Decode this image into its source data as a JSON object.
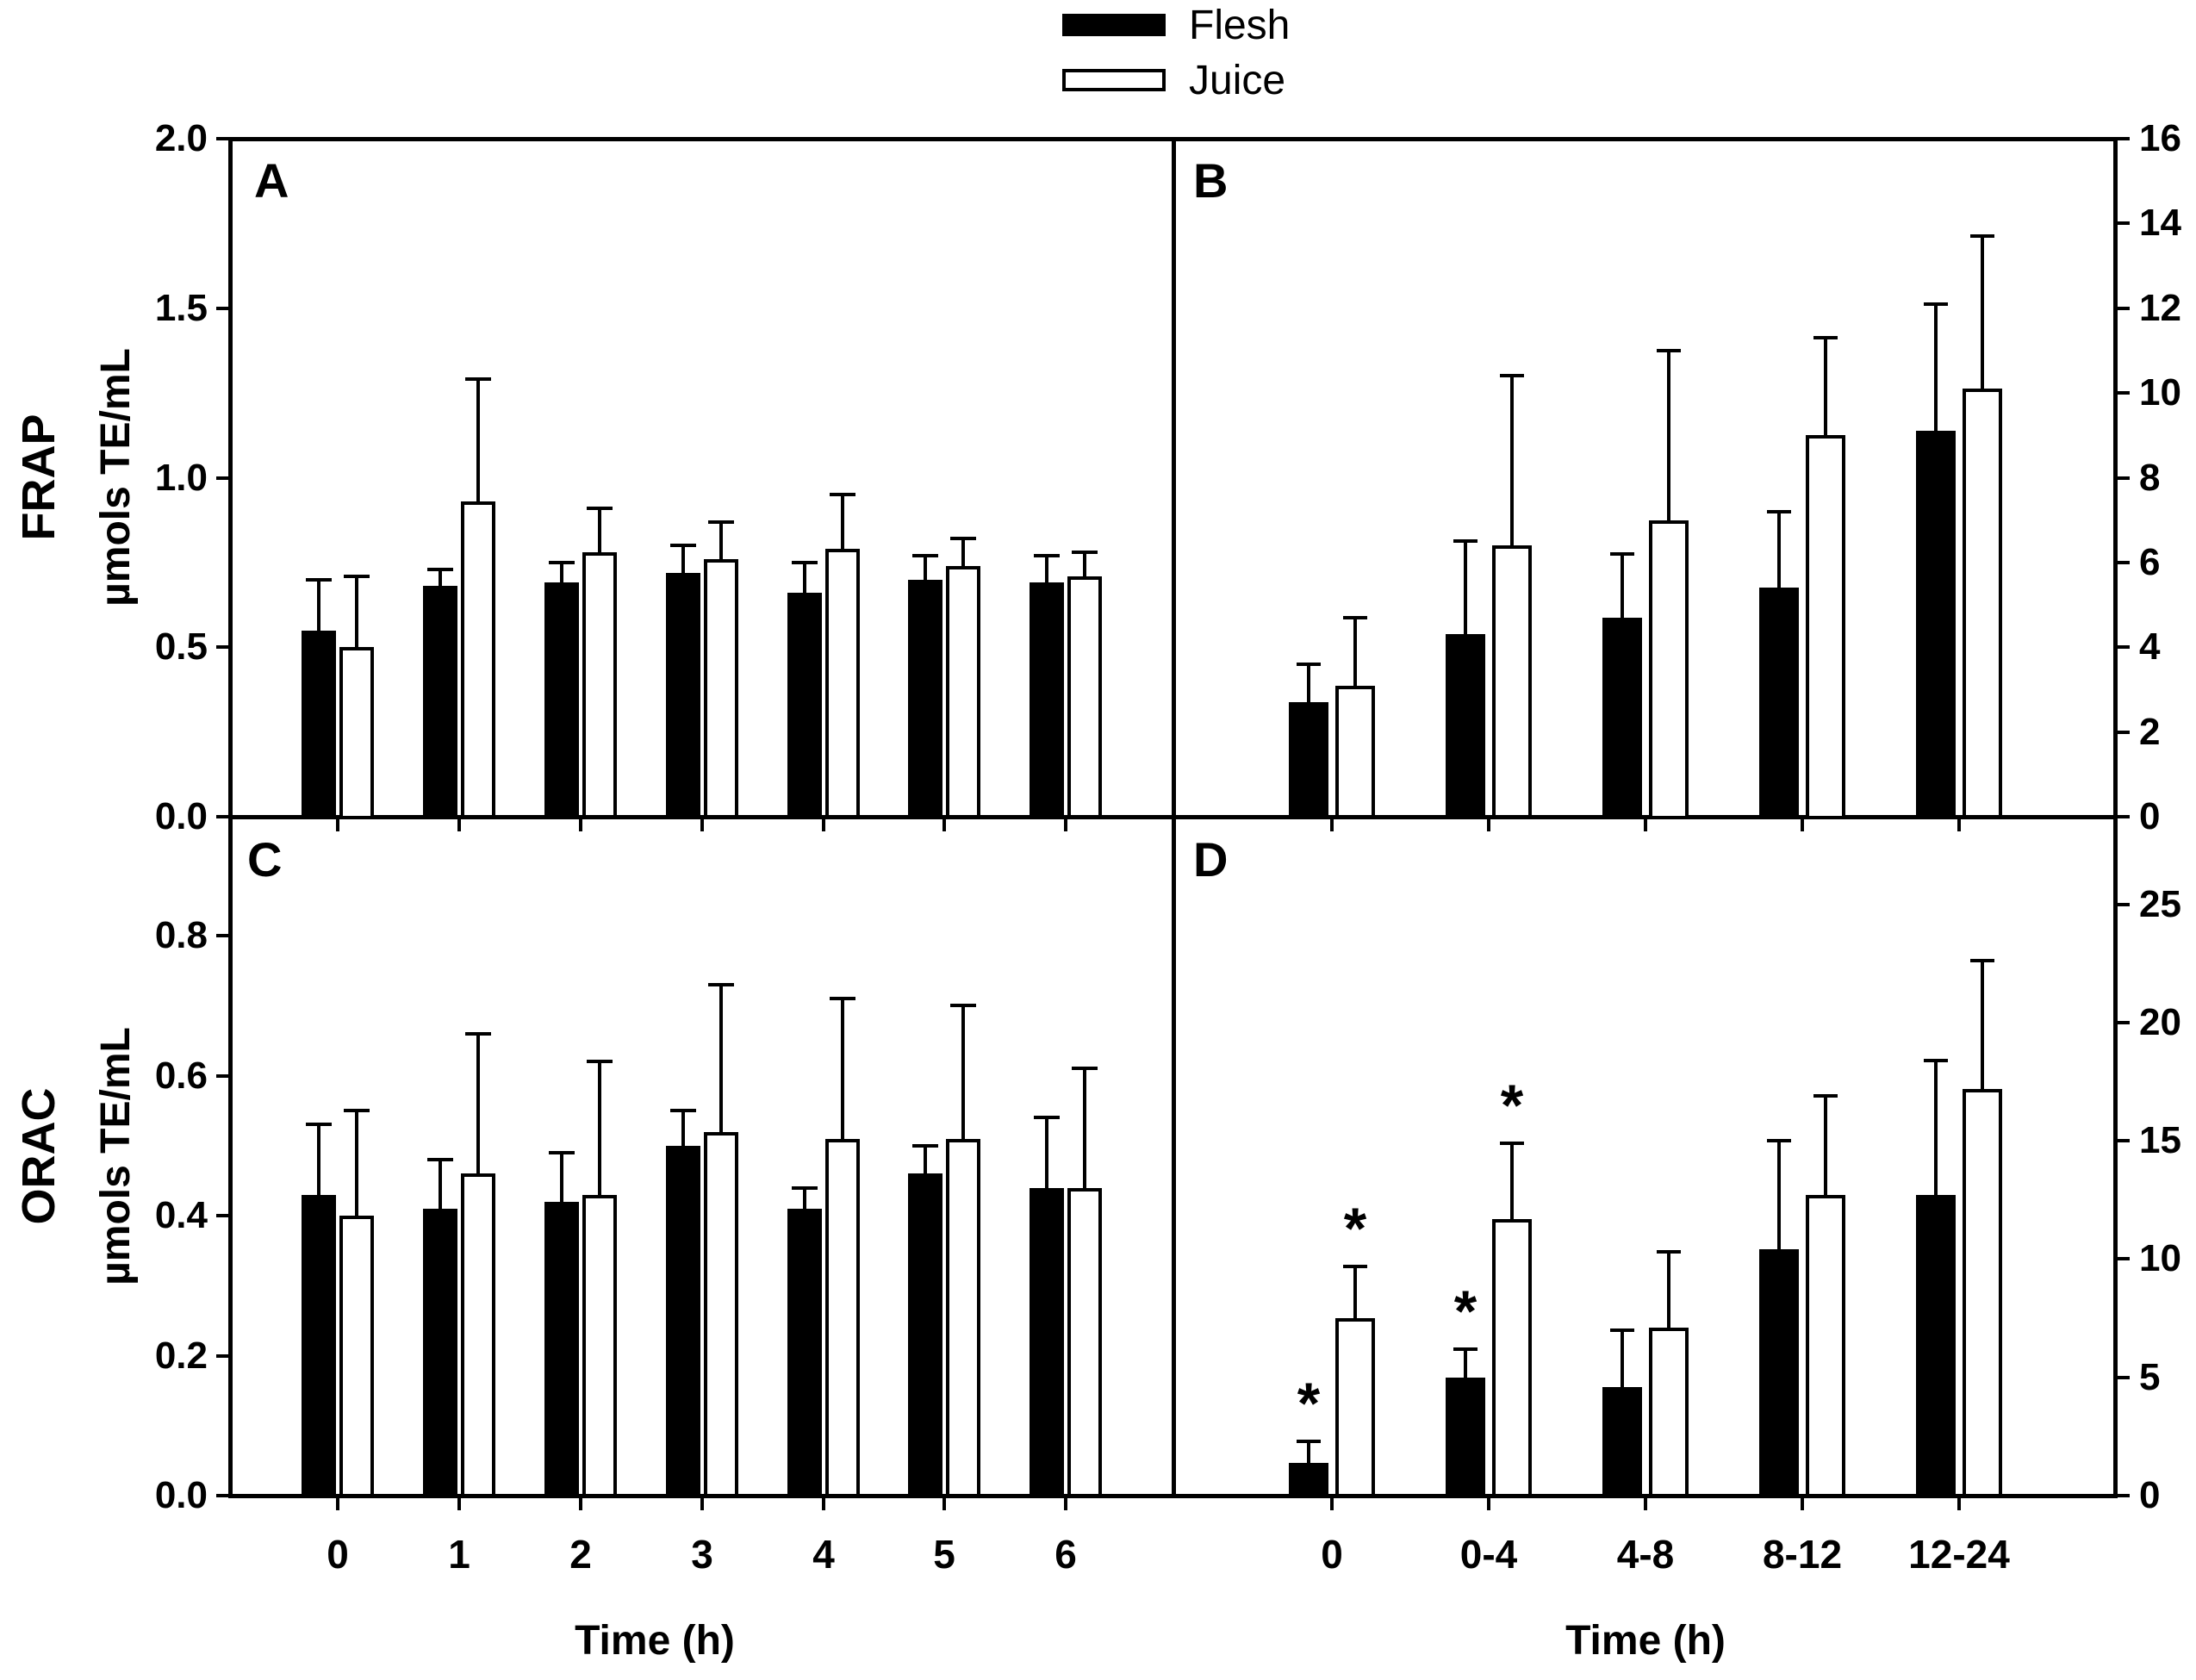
{
  "figure": {
    "colors": {
      "foreground": "#000000",
      "background": "#ffffff"
    },
    "legend": {
      "items": [
        {
          "label": "Flesh",
          "fill": "#000000"
        },
        {
          "label": "Juice",
          "fill": "#ffffff"
        }
      ]
    },
    "row_labels": [
      {
        "title": "FRAP",
        "units": "µmols TE/mL"
      },
      {
        "title": "ORAC",
        "units": "µmols TE/mL"
      }
    ],
    "x_axis_title": "Time (h)"
  },
  "chart_data": [
    {
      "panel": "A",
      "type": "bar",
      "assay": "FRAP",
      "categories": [
        "0",
        "1",
        "2",
        "3",
        "4",
        "5",
        "6"
      ],
      "xlabel": "Time (h)",
      "ylabel": "FRAP µmols TE/mL",
      "y_axis": {
        "side": "left",
        "range": [
          0,
          2.0
        ],
        "tick_values": [
          0.0,
          0.5,
          1.0,
          1.5,
          2.0
        ],
        "tick_labels": [
          "0.0",
          "0.5",
          "1.0",
          "1.5",
          "2.0"
        ]
      },
      "show_category_labels": false,
      "series": [
        {
          "name": "Flesh",
          "fill": "#000000",
          "values": [
            0.55,
            0.68,
            0.69,
            0.72,
            0.66,
            0.7,
            0.69
          ],
          "errors": [
            0.15,
            0.05,
            0.06,
            0.08,
            0.09,
            0.07,
            0.08
          ],
          "asterisks": []
        },
        {
          "name": "Juice",
          "fill": "#ffffff",
          "values": [
            0.5,
            0.93,
            0.78,
            0.76,
            0.79,
            0.74,
            0.71
          ],
          "errors": [
            0.21,
            0.36,
            0.13,
            0.11,
            0.16,
            0.08,
            0.07
          ],
          "asterisks": []
        }
      ]
    },
    {
      "panel": "B",
      "type": "bar",
      "assay": "FRAP",
      "categories": [
        "0",
        "0-4",
        "4-8",
        "8-12",
        "12-24"
      ],
      "xlabel": "Time (h)",
      "ylabel": "",
      "y_axis": {
        "side": "right",
        "range": [
          0,
          16
        ],
        "tick_values": [
          0,
          2,
          4,
          6,
          8,
          10,
          12,
          14,
          16
        ],
        "tick_labels": [
          "0",
          "2",
          "4",
          "6",
          "8",
          "10",
          "12",
          "14",
          "16"
        ]
      },
      "show_category_labels": false,
      "series": [
        {
          "name": "Flesh",
          "fill": "#000000",
          "values": [
            2.7,
            4.3,
            4.7,
            5.4,
            9.1
          ],
          "errors": [
            0.9,
            2.2,
            1.5,
            1.8,
            3.0
          ],
          "asterisks": []
        },
        {
          "name": "Juice",
          "fill": "#ffffff",
          "values": [
            3.1,
            6.4,
            7.0,
            9.0,
            10.1
          ],
          "errors": [
            1.6,
            4.0,
            4.0,
            2.3,
            3.6
          ],
          "asterisks": []
        }
      ]
    },
    {
      "panel": "C",
      "type": "bar",
      "assay": "ORAC",
      "categories": [
        "0",
        "1",
        "2",
        "3",
        "4",
        "5",
        "6"
      ],
      "xlabel": "Time (h)",
      "ylabel": "ORAC µmols TE/mL",
      "y_axis": {
        "side": "left",
        "range": [
          0,
          0.97
        ],
        "tick_values": [
          0.0,
          0.2,
          0.4,
          0.6,
          0.8
        ],
        "tick_labels": [
          "0.0",
          "0.2",
          "0.4",
          "0.6",
          "0.8"
        ]
      },
      "show_category_labels": true,
      "series": [
        {
          "name": "Flesh",
          "fill": "#000000",
          "values": [
            0.43,
            0.41,
            0.42,
            0.5,
            0.41,
            0.46,
            0.44
          ],
          "errors": [
            0.1,
            0.07,
            0.07,
            0.05,
            0.03,
            0.04,
            0.1
          ],
          "asterisks": []
        },
        {
          "name": "Juice",
          "fill": "#ffffff",
          "values": [
            0.4,
            0.46,
            0.43,
            0.52,
            0.51,
            0.51,
            0.44
          ],
          "errors": [
            0.15,
            0.2,
            0.19,
            0.21,
            0.2,
            0.19,
            0.17
          ],
          "asterisks": []
        }
      ]
    },
    {
      "panel": "D",
      "type": "bar",
      "assay": "ORAC",
      "categories": [
        "0",
        "0-4",
        "4-8",
        "8-12",
        "12-24"
      ],
      "xlabel": "Time (h)",
      "ylabel": "",
      "y_axis": {
        "side": "right",
        "range": [
          0,
          28.7
        ],
        "tick_values": [
          0,
          5,
          10,
          15,
          20,
          25
        ],
        "tick_labels": [
          "0",
          "5",
          "10",
          "15",
          "20",
          "25"
        ]
      },
      "show_category_labels": true,
      "significance_marker": "*",
      "series": [
        {
          "name": "Flesh",
          "fill": "#000000",
          "values": [
            1.4,
            5.0,
            4.6,
            10.4,
            12.7
          ],
          "errors": [
            0.9,
            1.2,
            2.4,
            4.6,
            5.7
          ],
          "asterisks": [
            0,
            1
          ]
        },
        {
          "name": "Juice",
          "fill": "#ffffff",
          "values": [
            7.5,
            11.7,
            7.1,
            12.7,
            17.2
          ],
          "errors": [
            2.2,
            3.2,
            3.2,
            4.2,
            5.4
          ],
          "asterisks": [
            0,
            1
          ]
        }
      ]
    }
  ]
}
